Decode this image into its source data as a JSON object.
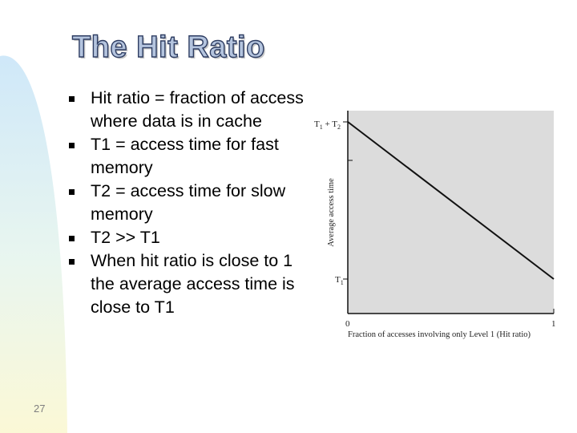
{
  "slide": {
    "title": "The Hit Ratio",
    "number": "27",
    "bullets": [
      "Hit ratio = fraction of access where data is in cache",
      "T1 = access time for fast memory",
      "T2 = access time for slow memory",
      "T2 >> T1",
      "When hit ratio is close to 1 the average access time is close to T1"
    ]
  },
  "colors": {
    "plot_background": "#dcdcdc",
    "line": "#111111",
    "title_fill": "#b4c4de",
    "title_outline": "#2e3d62"
  },
  "chart_data": {
    "type": "line",
    "title": "",
    "xlabel": "Fraction of accesses involving only Level 1 (Hit ratio)",
    "ylabel": "Average access time",
    "xlim": [
      0,
      1
    ],
    "x_ticks": [
      "0",
      "1"
    ],
    "y_tick_labels": {
      "top": "T1 + T2",
      "bottom": "T1"
    },
    "series": [
      {
        "x": [
          0,
          1
        ],
        "y": [
          "T1 + T2",
          "T1"
        ]
      }
    ],
    "grid": false,
    "legend": "none"
  }
}
